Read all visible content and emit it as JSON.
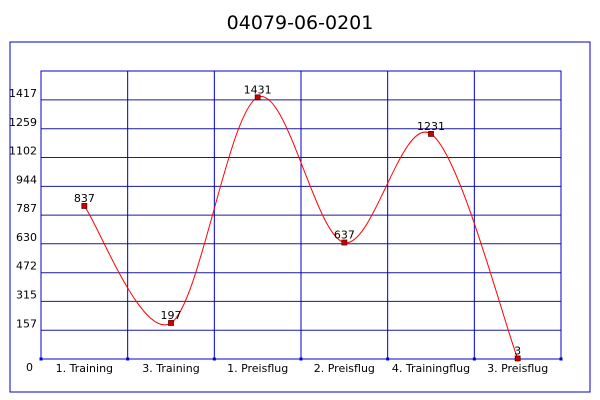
{
  "chart_data": {
    "type": "line",
    "title": "04079-06-0201",
    "xlabel": "",
    "ylabel": "",
    "categories": [
      "1. Training",
      "3. Training",
      "1. Preisflug",
      "2. Preisflug",
      "4. Trainingflug",
      "3. Preisflug"
    ],
    "series": [
      {
        "values": [
          837,
          197,
          1431,
          637,
          1231,
          3
        ]
      }
    ],
    "data_labels": [
      "837",
      "197",
      "1431",
      "637",
      "1231",
      "3"
    ],
    "y_ticks": [
      "0",
      "157",
      "315",
      "472",
      "630",
      "787",
      "944",
      "1102",
      "1259",
      "1417"
    ],
    "y_tick_values": [
      0,
      157,
      315,
      472,
      630,
      787,
      944,
      1102,
      1259,
      1417
    ],
    "ylim": [
      0,
      1417
    ],
    "grid": true,
    "smooth": true,
    "colors": {
      "frame": "#0000cc",
      "grid": "#1a1a9e",
      "line": "#ff0000",
      "marker_fill": "#cc0000",
      "marker_stroke": "#660000",
      "text": "#000000"
    }
  }
}
